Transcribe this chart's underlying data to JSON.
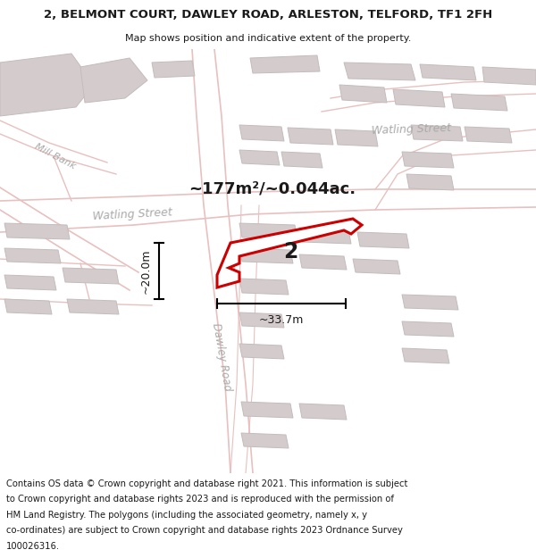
{
  "title": "2, BELMONT COURT, DAWLEY ROAD, ARLESTON, TELFORD, TF1 2FH",
  "subtitle": "Map shows position and indicative extent of the property.",
  "area_text": "~177m²/~0.044ac.",
  "dim_width": "~33.7m",
  "dim_height": "~20.0m",
  "label_number": "2",
  "road_label_dawley": "Dawley Road",
  "road_label_watling1": "Watling Street",
  "road_label_watling2": "Watling Street",
  "road_label_mill": "Mill Bank",
  "footer_lines": [
    "Contains OS data © Crown copyright and database right 2021. This information is subject",
    "to Crown copyright and database rights 2023 and is reproduced with the permission of",
    "HM Land Registry. The polygons (including the associated geometry, namely x, y",
    "co-ordinates) are subject to Crown copyright and database rights 2023 Ordnance Survey",
    "100026316."
  ],
  "map_bg": "#f5eeee",
  "road_color": "#e8c0c0",
  "road_fill": "#ffffff",
  "highlight_color": "#cc0000",
  "building_fill": "#d4cccc",
  "building_edge": "#c4bcbc",
  "label_color": "#aaaaaa",
  "dark_text": "#1a1a1a",
  "title_fontsize": 9.5,
  "subtitle_fontsize": 8,
  "footer_fontsize": 7.2,
  "area_fontsize": 13,
  "dim_fontsize": 9,
  "road_label_fontsize": 9,
  "prop_label_fontsize": 17
}
